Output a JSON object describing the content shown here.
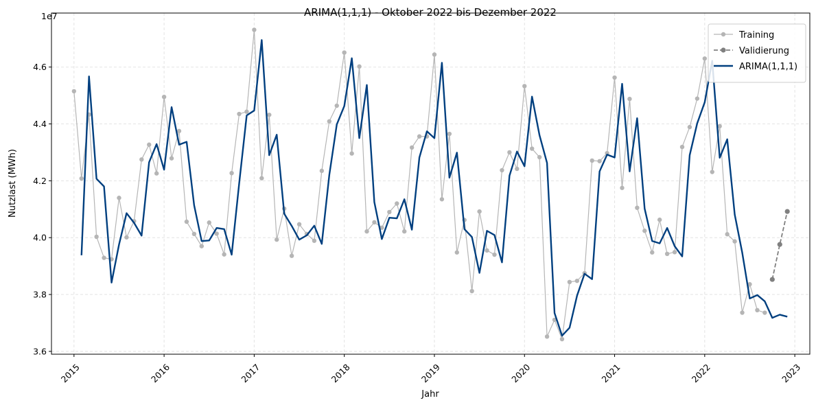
{
  "chart_data": {
    "type": "line",
    "title": "ARIMA(1,1,1) - Oktober 2022 bis Dezember 2022",
    "xlabel": "Jahr",
    "ylabel": "Nutzlast (MWh)",
    "y_offset_label": "1e7",
    "x_range": [
      "2014-10-01",
      "2023-03-01"
    ],
    "ylim": [
      35900000,
      47900000
    ],
    "x_ticks": [
      "2015",
      "2016",
      "2017",
      "2018",
      "2019",
      "2020",
      "2021",
      "2022",
      "2023"
    ],
    "y_ticks": [
      3.6,
      3.8,
      4.0,
      4.2,
      4.4,
      4.6
    ],
    "grid": true,
    "legend_position": "top-right",
    "series": [
      {
        "name": "Training",
        "color": "#b5b5b5",
        "style": "line-with-dots",
        "x": [
          "2015-01",
          "2015-02",
          "2015-03",
          "2015-04",
          "2015-05",
          "2015-06",
          "2015-07",
          "2015-08",
          "2015-09",
          "2015-10",
          "2015-11",
          "2015-12",
          "2016-01",
          "2016-02",
          "2016-03",
          "2016-04",
          "2016-05",
          "2016-06",
          "2016-07",
          "2016-08",
          "2016-09",
          "2016-10",
          "2016-11",
          "2016-12",
          "2017-01",
          "2017-02",
          "2017-03",
          "2017-04",
          "2017-05",
          "2017-06",
          "2017-07",
          "2017-08",
          "2017-09",
          "2017-10",
          "2017-11",
          "2017-12",
          "2018-01",
          "2018-02",
          "2018-03",
          "2018-04",
          "2018-05",
          "2018-06",
          "2018-07",
          "2018-08",
          "2018-09",
          "2018-10",
          "2018-11",
          "2018-12",
          "2019-01",
          "2019-02",
          "2019-03",
          "2019-04",
          "2019-05",
          "2019-06",
          "2019-07",
          "2019-08",
          "2019-09",
          "2019-10",
          "2019-11",
          "2019-12",
          "2020-01",
          "2020-02",
          "2020-03",
          "2020-04",
          "2020-05",
          "2020-06",
          "2020-07",
          "2020-08",
          "2020-09",
          "2020-10",
          "2020-11",
          "2020-12",
          "2021-01",
          "2021-02",
          "2021-03",
          "2021-04",
          "2021-05",
          "2021-06",
          "2021-07",
          "2021-08",
          "2021-09",
          "2021-10",
          "2021-11",
          "2021-12",
          "2022-01",
          "2022-02",
          "2022-03",
          "2022-04",
          "2022-05",
          "2022-06",
          "2022-07",
          "2022-08",
          "2022-09"
        ],
        "values": [
          45150000,
          42080000,
          44330000,
          40030000,
          39290000,
          39240000,
          41400000,
          40010000,
          40580000,
          42750000,
          43270000,
          42260000,
          44950000,
          42790000,
          43750000,
          40560000,
          40130000,
          39700000,
          40530000,
          40140000,
          39410000,
          42270000,
          44350000,
          44430000,
          47310000,
          42090000,
          44320000,
          39930000,
          41020000,
          39360000,
          40470000,
          40130000,
          39890000,
          42350000,
          44090000,
          44640000,
          46510000,
          42960000,
          46020000,
          40220000,
          40540000,
          40350000,
          40900000,
          41200000,
          40220000,
          43170000,
          43560000,
          43560000,
          46440000,
          41350000,
          43650000,
          39480000,
          40620000,
          38120000,
          40920000,
          39550000,
          39400000,
          42370000,
          43000000,
          42420000,
          45330000,
          43130000,
          42830000,
          36520000,
          37110000,
          36430000,
          38440000,
          38480000,
          38750000,
          42710000,
          42690000,
          42970000,
          45630000,
          41750000,
          44880000,
          41050000,
          40240000,
          39480000,
          40630000,
          39430000,
          39490000,
          43190000,
          43890000,
          44890000,
          46300000,
          42310000,
          43920000,
          40120000,
          39870000,
          37360000,
          38360000,
          37450000,
          37360000
        ]
      },
      {
        "name": "Validierung",
        "color": "#808080",
        "style": "dashed-with-dots",
        "x": [
          "2022-10",
          "2022-11",
          "2022-12"
        ],
        "values": [
          38530000,
          39760000,
          40920000
        ]
      },
      {
        "name": "ARIMA(1,1,1)",
        "color": "#003f7f",
        "style": "thick-line",
        "x": [
          "2015-02",
          "2015-03",
          "2015-04",
          "2015-05",
          "2015-06",
          "2015-07",
          "2015-08",
          "2015-09",
          "2015-10",
          "2015-11",
          "2015-12",
          "2016-01",
          "2016-02",
          "2016-03",
          "2016-04",
          "2016-05",
          "2016-06",
          "2016-07",
          "2016-08",
          "2016-09",
          "2016-10",
          "2016-11",
          "2016-12",
          "2017-01",
          "2017-02",
          "2017-03",
          "2017-04",
          "2017-05",
          "2017-06",
          "2017-07",
          "2017-08",
          "2017-09",
          "2017-10",
          "2017-11",
          "2017-12",
          "2018-01",
          "2018-02",
          "2018-03",
          "2018-04",
          "2018-05",
          "2018-06",
          "2018-07",
          "2018-08",
          "2018-09",
          "2018-10",
          "2018-11",
          "2018-12",
          "2019-01",
          "2019-02",
          "2019-03",
          "2019-04",
          "2019-05",
          "2019-06",
          "2019-07",
          "2019-08",
          "2019-09",
          "2019-10",
          "2019-11",
          "2019-12",
          "2020-01",
          "2020-02",
          "2020-03",
          "2020-04",
          "2020-05",
          "2020-06",
          "2020-07",
          "2020-08",
          "2020-09",
          "2020-10",
          "2020-11",
          "2020-12",
          "2021-01",
          "2021-02",
          "2021-03",
          "2021-04",
          "2021-05",
          "2021-06",
          "2021-07",
          "2021-08",
          "2021-09",
          "2021-10",
          "2021-11",
          "2021-12",
          "2022-01",
          "2022-02",
          "2022-03",
          "2022-04",
          "2022-05",
          "2022-06",
          "2022-07",
          "2022-08",
          "2022-09",
          "2022-10",
          "2022-11",
          "2022-12"
        ],
        "values": [
          39380000,
          45670000,
          42070000,
          41800000,
          38420000,
          39760000,
          40860000,
          40520000,
          40070000,
          42650000,
          43290000,
          42390000,
          44590000,
          43270000,
          43370000,
          41140000,
          39880000,
          39900000,
          40340000,
          40300000,
          39400000,
          41910000,
          44300000,
          44470000,
          46950000,
          42900000,
          43620000,
          40840000,
          40410000,
          39930000,
          40080000,
          40420000,
          39780000,
          42200000,
          43980000,
          44630000,
          46310000,
          43500000,
          45370000,
          41250000,
          39950000,
          40700000,
          40680000,
          41350000,
          40280000,
          42820000,
          43740000,
          43500000,
          46150000,
          42110000,
          42990000,
          40300000,
          40020000,
          38760000,
          40240000,
          40090000,
          39130000,
          42180000,
          43030000,
          42510000,
          44960000,
          43600000,
          42630000,
          37350000,
          36550000,
          36830000,
          37960000,
          38730000,
          38540000,
          42330000,
          42920000,
          42820000,
          45410000,
          42330000,
          44200000,
          41020000,
          39880000,
          39800000,
          40340000,
          39700000,
          39340000,
          42900000,
          44020000,
          44760000,
          46220000,
          42810000,
          43460000,
          40810000,
          39470000,
          37860000,
          37980000,
          37760000,
          37180000,
          37290000,
          37220000
        ]
      }
    ]
  }
}
